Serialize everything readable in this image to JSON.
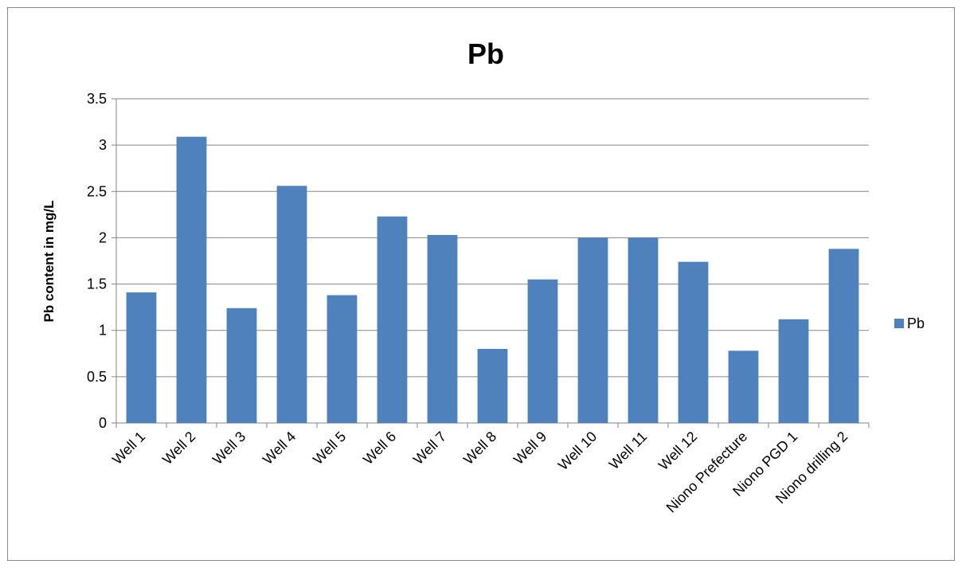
{
  "chart_data": {
    "type": "bar",
    "title": "Pb",
    "xlabel": "",
    "ylabel": "Pb content in mg/L",
    "ylim": [
      0,
      3.5
    ],
    "ytick_step": 0.5,
    "grid": true,
    "legend_position": "right",
    "categories": [
      "Well 1",
      "Well 2",
      "Well 3",
      "Well 4",
      "Well 5",
      "Well 6",
      "Well 7",
      "Well 8",
      "Well 9",
      "Well 10",
      "Well 11",
      "Well 12",
      "Niono Prefecture",
      "Niono PGD 1",
      "Niono drilling 2"
    ],
    "series": [
      {
        "name": "Pb",
        "color": "#4f81bd",
        "values": [
          1.41,
          3.09,
          1.24,
          2.56,
          1.38,
          2.23,
          2.03,
          0.8,
          1.55,
          2.0,
          2.0,
          1.74,
          0.78,
          1.12,
          1.88
        ]
      }
    ]
  }
}
